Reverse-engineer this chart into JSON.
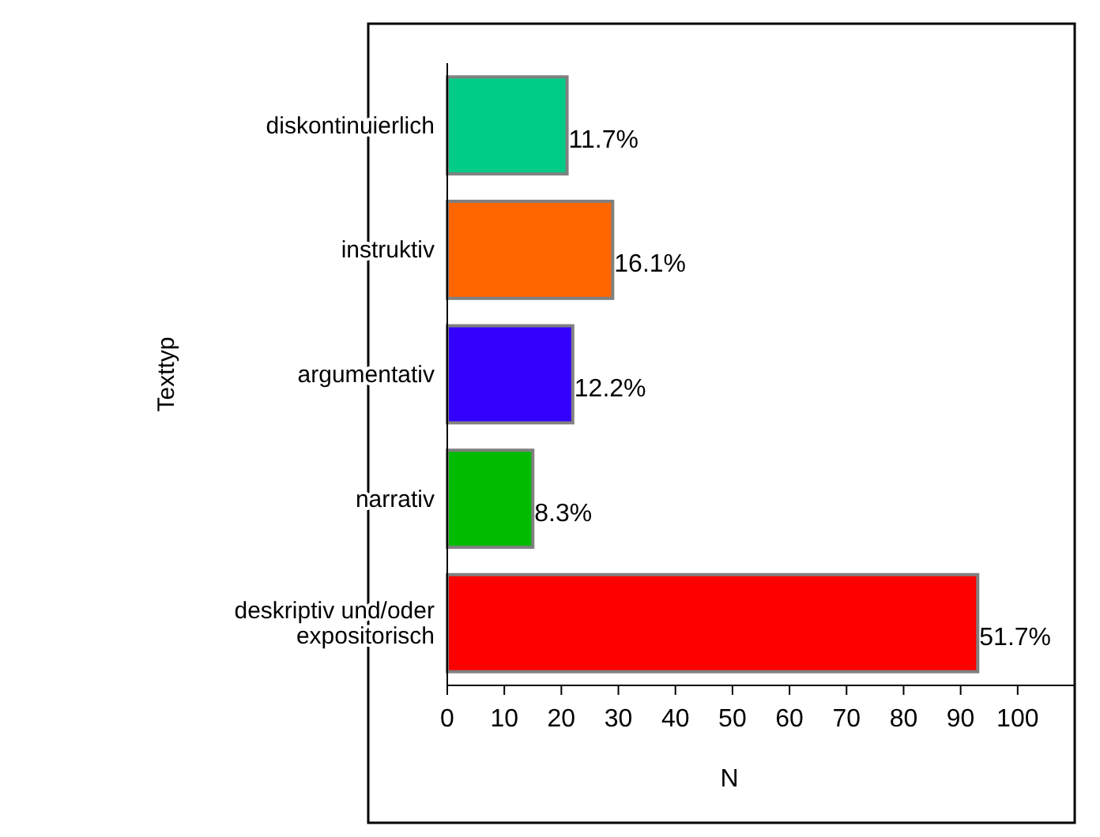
{
  "chart_data": {
    "type": "bar",
    "orientation": "horizontal",
    "xlabel": "N",
    "ylabel": "Texttyp",
    "categories": [
      "diskontinuierlich",
      "instruktiv",
      "argumentativ",
      "narrativ",
      "deskriptiv und/oder expositorisch"
    ],
    "values": [
      21,
      29,
      22,
      15,
      93
    ],
    "colors": [
      "#00cc88",
      "#ff6600",
      "#3300ff",
      "#00bb00",
      "#ff0000"
    ],
    "annotations": [
      {
        "text": "11.7%",
        "x": 21,
        "y": "diskontinuierlich"
      },
      {
        "text": "16.1%",
        "x": 29,
        "y": "instruktiv"
      },
      {
        "text": "12.2%",
        "x": 22,
        "y": "argumentativ"
      },
      {
        "text": "8.3%",
        "x": 15,
        "y": "narrativ"
      },
      {
        "text": "51.7%",
        "x": 93,
        "y": "deskriptiv und/oder expositorisch"
      }
    ],
    "xlim": [
      0,
      110
    ],
    "xticks": [
      0,
      10,
      20,
      30,
      40,
      50,
      60,
      70,
      80,
      90,
      100
    ],
    "grid": false,
    "legend": false
  }
}
